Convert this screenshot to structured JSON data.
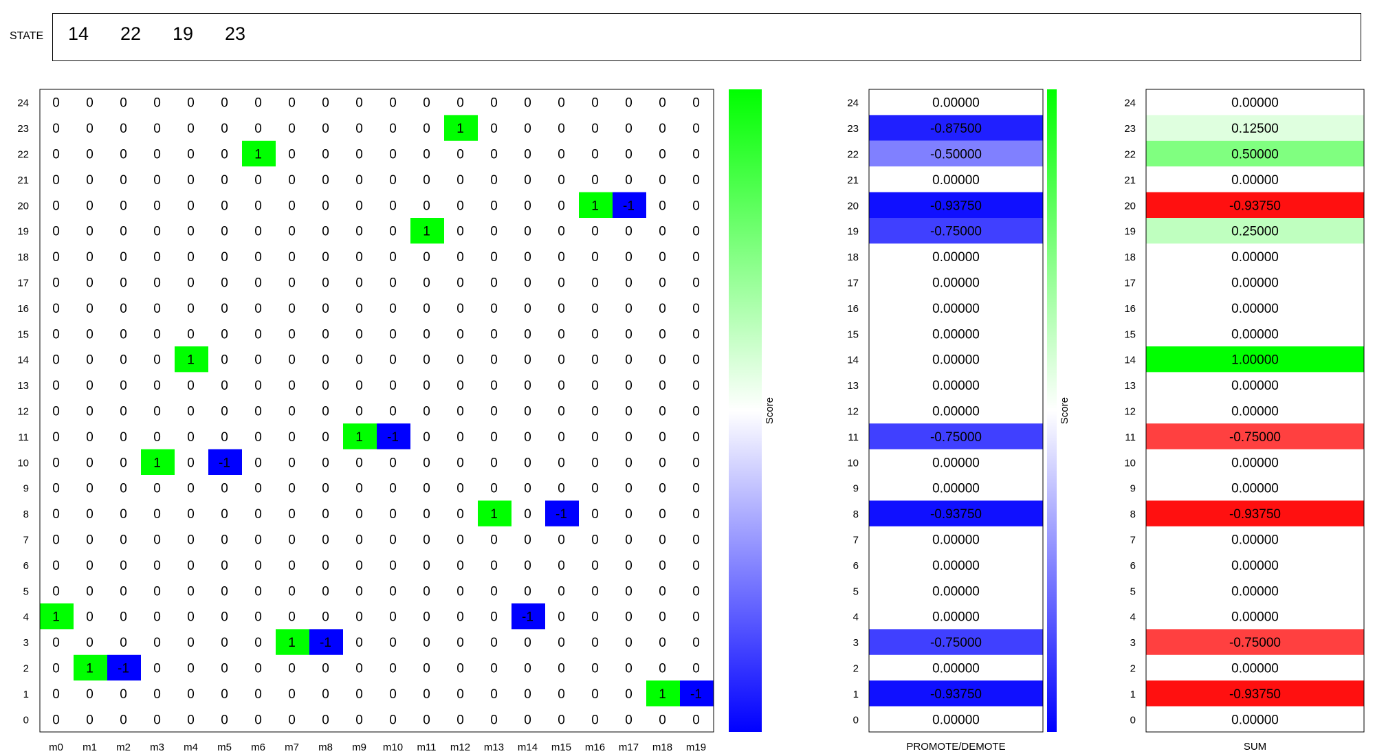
{
  "state": {
    "label": "STATE",
    "values": [
      "14",
      "22",
      "19",
      "23"
    ]
  },
  "chart_data": [
    {
      "type": "heatmap",
      "title": "",
      "x_categories": [
        "m0",
        "m1",
        "m2",
        "m3",
        "m4",
        "m5",
        "m6",
        "m7",
        "m8",
        "m9",
        "m10",
        "m11",
        "m12",
        "m13",
        "m14",
        "m15",
        "m16",
        "m17",
        "m18",
        "m19"
      ],
      "y_categories": [
        "0",
        "1",
        "2",
        "3",
        "4",
        "5",
        "6",
        "7",
        "8",
        "9",
        "10",
        "11",
        "12",
        "13",
        "14",
        "15",
        "16",
        "17",
        "18",
        "19",
        "20",
        "21",
        "22",
        "23",
        "24"
      ],
      "default_value": 0,
      "nonzero_cells": [
        {
          "row": "23",
          "col": "m12",
          "value": 1
        },
        {
          "row": "22",
          "col": "m6",
          "value": 1
        },
        {
          "row": "20",
          "col": "m16",
          "value": 1
        },
        {
          "row": "20",
          "col": "m17",
          "value": -1
        },
        {
          "row": "19",
          "col": "m11",
          "value": 1
        },
        {
          "row": "14",
          "col": "m4",
          "value": 1
        },
        {
          "row": "11",
          "col": "m9",
          "value": 1
        },
        {
          "row": "11",
          "col": "m10",
          "value": -1
        },
        {
          "row": "10",
          "col": "m3",
          "value": 1
        },
        {
          "row": "10",
          "col": "m5",
          "value": -1
        },
        {
          "row": "8",
          "col": "m13",
          "value": 1
        },
        {
          "row": "8",
          "col": "m15",
          "value": -1
        },
        {
          "row": "4",
          "col": "m0",
          "value": 1
        },
        {
          "row": "4",
          "col": "m14",
          "value": -1
        },
        {
          "row": "3",
          "col": "m7",
          "value": 1
        },
        {
          "row": "3",
          "col": "m8",
          "value": -1
        },
        {
          "row": "2",
          "col": "m1",
          "value": 1
        },
        {
          "row": "2",
          "col": "m2",
          "value": -1
        },
        {
          "row": "1",
          "col": "m18",
          "value": 1
        },
        {
          "row": "1",
          "col": "m19",
          "value": -1
        }
      ],
      "colorbar": {
        "label": "Score",
        "range": [
          -1,
          1
        ],
        "colors": [
          "#0000ff",
          "#ffffff",
          "#00ff00"
        ]
      }
    },
    {
      "type": "heatmap",
      "xlabel": "PROMOTE/DEMOTE",
      "y_categories": [
        "0",
        "1",
        "2",
        "3",
        "4",
        "5",
        "6",
        "7",
        "8",
        "9",
        "10",
        "11",
        "12",
        "13",
        "14",
        "15",
        "16",
        "17",
        "18",
        "19",
        "20",
        "21",
        "22",
        "23",
        "24"
      ],
      "values": [
        "0.00000",
        "-0.93750",
        "0.00000",
        "-0.75000",
        "0.00000",
        "0.00000",
        "0.00000",
        "0.00000",
        "-0.93750",
        "0.00000",
        "0.00000",
        "-0.75000",
        "0.00000",
        "0.00000",
        "0.00000",
        "0.00000",
        "0.00000",
        "0.00000",
        "0.00000",
        "-0.75000",
        "-0.93750",
        "0.00000",
        "-0.50000",
        "-0.87500",
        "0.00000"
      ],
      "colorbar": {
        "label": "Score",
        "colors": [
          "#0000ff",
          "#ffffff",
          "#00ff00"
        ]
      }
    },
    {
      "type": "heatmap",
      "xlabel": "SUM",
      "y_categories": [
        "0",
        "1",
        "2",
        "3",
        "4",
        "5",
        "6",
        "7",
        "8",
        "9",
        "10",
        "11",
        "12",
        "13",
        "14",
        "15",
        "16",
        "17",
        "18",
        "19",
        "20",
        "21",
        "22",
        "23",
        "24"
      ],
      "values": [
        "0.00000",
        "-0.93750",
        "0.00000",
        "-0.75000",
        "0.00000",
        "0.00000",
        "0.00000",
        "0.00000",
        "-0.93750",
        "0.00000",
        "0.00000",
        "-0.75000",
        "0.00000",
        "0.00000",
        "1.00000",
        "0.00000",
        "0.00000",
        "0.00000",
        "0.00000",
        "0.25000",
        "-0.93750",
        "0.00000",
        "0.50000",
        "0.12500",
        "0.00000"
      ],
      "colors": {
        "positive": "#00ff00",
        "negative": "#ff0000"
      }
    }
  ]
}
